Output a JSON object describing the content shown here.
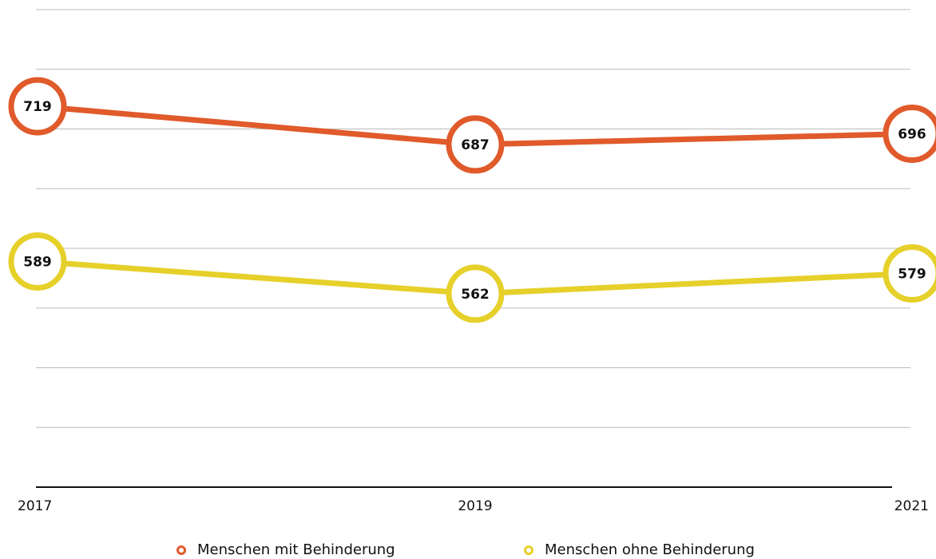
{
  "chart_data": {
    "type": "line",
    "categories": [
      "2017",
      "2019",
      "2021"
    ],
    "series": [
      {
        "name": "Menschen mit Behinderung",
        "color": "#e05a2b",
        "values": [
          719,
          687,
          696
        ]
      },
      {
        "name": "Menschen ohne Behinderung",
        "color": "#e6d02a",
        "values": [
          589,
          562,
          579
        ]
      }
    ],
    "ylim": [
      400,
      800
    ],
    "yticks": [
      400,
      450,
      500,
      550,
      600,
      650,
      700,
      750,
      800
    ],
    "grid": true
  }
}
